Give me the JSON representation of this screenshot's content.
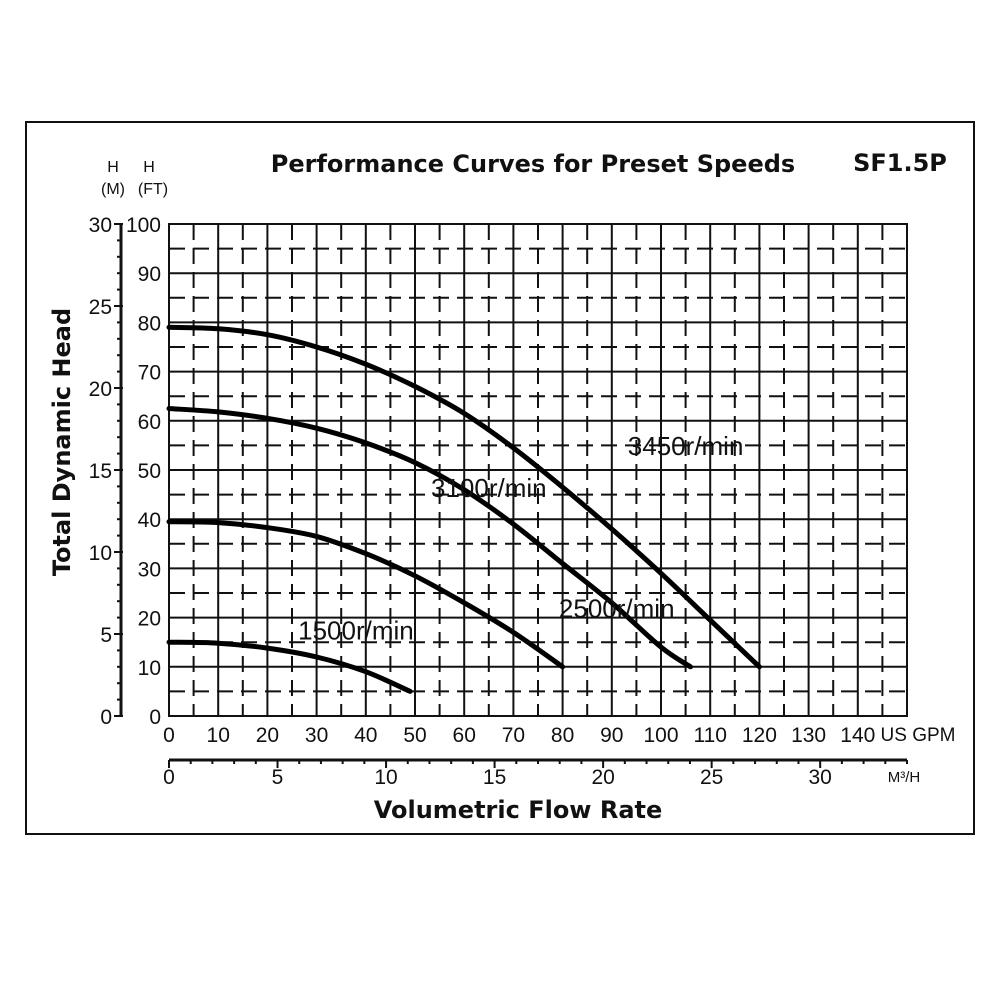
{
  "chart_data": {
    "type": "line",
    "title": "Performance Curves for Preset Speeds",
    "model": "SF1.5P",
    "ylabel": "Total Dynamic Head",
    "xlabel": "Volumetric Flow Rate",
    "y_ft_label": [
      "H",
      "(FT)"
    ],
    "y_m_label": [
      "H",
      "(M)"
    ],
    "x_gpm_unit": "US GPM",
    "x_m3h_unit": "M³/H",
    "ylim_ft": [
      0,
      100
    ],
    "ylim_m": [
      0,
      30
    ],
    "xlim_gpm": [
      0,
      150
    ],
    "xlim_m3h": [
      0,
      34
    ],
    "y_ft_ticks": [
      "0",
      "10",
      "20",
      "30",
      "40",
      "50",
      "60",
      "70",
      "80",
      "90",
      "100"
    ],
    "y_m_ticks": [
      "0",
      "5",
      "10",
      "15",
      "20",
      "25",
      "30"
    ],
    "x_gpm_ticks": [
      "0",
      "10",
      "20",
      "30",
      "40",
      "50",
      "60",
      "70",
      "80",
      "90",
      "100",
      "110",
      "120",
      "130",
      "140"
    ],
    "x_m3h_ticks": [
      "0",
      "5",
      "10",
      "15",
      "20",
      "25",
      "30"
    ],
    "grid": true,
    "series": [
      {
        "name": "3450r/min",
        "x": [
          0,
          10,
          20,
          30,
          40,
          50,
          60,
          70,
          80,
          90,
          100,
          110,
          120
        ],
        "y": [
          79,
          78.7,
          77.5,
          75,
          71.5,
          67,
          61.5,
          54.5,
          46.5,
          38,
          29,
          19.5,
          10
        ]
      },
      {
        "name": "3100r/min",
        "x": [
          0,
          10,
          20,
          30,
          40,
          50,
          60,
          70,
          80,
          90,
          100,
          106
        ],
        "y": [
          62.5,
          61.8,
          60.5,
          58.5,
          55.5,
          51.5,
          46,
          39,
          31,
          23,
          14,
          10
        ]
      },
      {
        "name": "2500r/min",
        "x": [
          0,
          10,
          20,
          30,
          40,
          50,
          60,
          70,
          80
        ],
        "y": [
          39.5,
          39.3,
          38.3,
          36.5,
          33,
          28.5,
          23,
          17,
          10
        ]
      },
      {
        "name": "1500r/min",
        "x": [
          0,
          10,
          20,
          30,
          40,
          49
        ],
        "y": [
          15,
          14.8,
          13.8,
          12,
          9,
          5
        ]
      }
    ]
  }
}
